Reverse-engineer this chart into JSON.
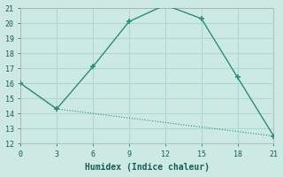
{
  "xlabel": "Humidex (Indice chaleur)",
  "line1_x": [
    0,
    3,
    6,
    9,
    12,
    15,
    18,
    21
  ],
  "line1_y": [
    16,
    14.3,
    17.1,
    20.1,
    21.2,
    20.3,
    16.4,
    12.5
  ],
  "line2_x": [
    0,
    3,
    21
  ],
  "line2_y": [
    16,
    14.3,
    12.5
  ],
  "line_color": "#2e8b7a",
  "bg_color": "#cce9e4",
  "grid_color": "#b0d8d2",
  "xlim": [
    0,
    21
  ],
  "ylim": [
    12,
    21
  ],
  "xticks": [
    0,
    3,
    6,
    9,
    12,
    15,
    18,
    21
  ],
  "yticks": [
    12,
    13,
    14,
    15,
    16,
    17,
    18,
    19,
    20,
    21
  ],
  "marker": "+",
  "markersize": 5,
  "linewidth1": 1.0,
  "linewidth2": 0.8,
  "xlabel_fontsize": 7,
  "tick_fontsize": 6
}
